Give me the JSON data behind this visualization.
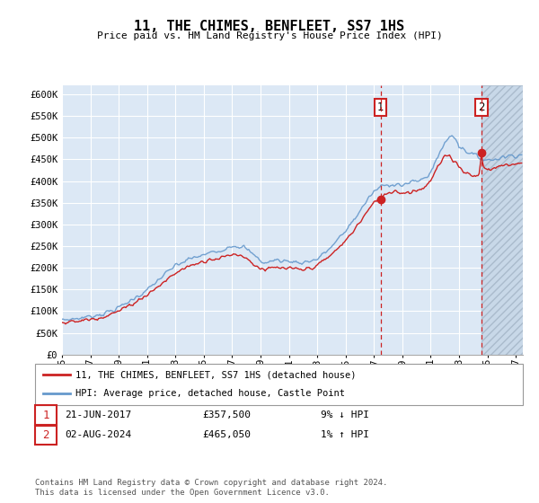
{
  "title": "11, THE CHIMES, BENFLEET, SS7 1HS",
  "subtitle": "Price paid vs. HM Land Registry's House Price Index (HPI)",
  "ylabel_ticks": [
    "£0",
    "£50K",
    "£100K",
    "£150K",
    "£200K",
    "£250K",
    "£300K",
    "£350K",
    "£400K",
    "£450K",
    "£500K",
    "£550K",
    "£600K"
  ],
  "ytick_values": [
    0,
    50000,
    100000,
    150000,
    200000,
    250000,
    300000,
    350000,
    400000,
    450000,
    500000,
    550000,
    600000
  ],
  "ylim": [
    0,
    620000
  ],
  "xlim_start": 1995.0,
  "xlim_end": 2027.5,
  "hpi_color": "#6699cc",
  "price_color": "#cc2222",
  "vline1_x": 2017.47,
  "vline2_x": 2024.58,
  "marker1_y": 357500,
  "marker2_y": 465050,
  "legend_label1": "11, THE CHIMES, BENFLEET, SS7 1HS (detached house)",
  "legend_label2": "HPI: Average price, detached house, Castle Point",
  "table_row1": [
    "1",
    "21-JUN-2017",
    "£357,500",
    "9% ↓ HPI"
  ],
  "table_row2": [
    "2",
    "02-AUG-2024",
    "£465,050",
    "1% ↑ HPI"
  ],
  "footer": "Contains HM Land Registry data © Crown copyright and database right 2024.\nThis data is licensed under the Open Government Licence v3.0.",
  "background_color": "#dce8f5",
  "grid_color": "#ffffff",
  "hatch_region_color": "#c8d8e8"
}
